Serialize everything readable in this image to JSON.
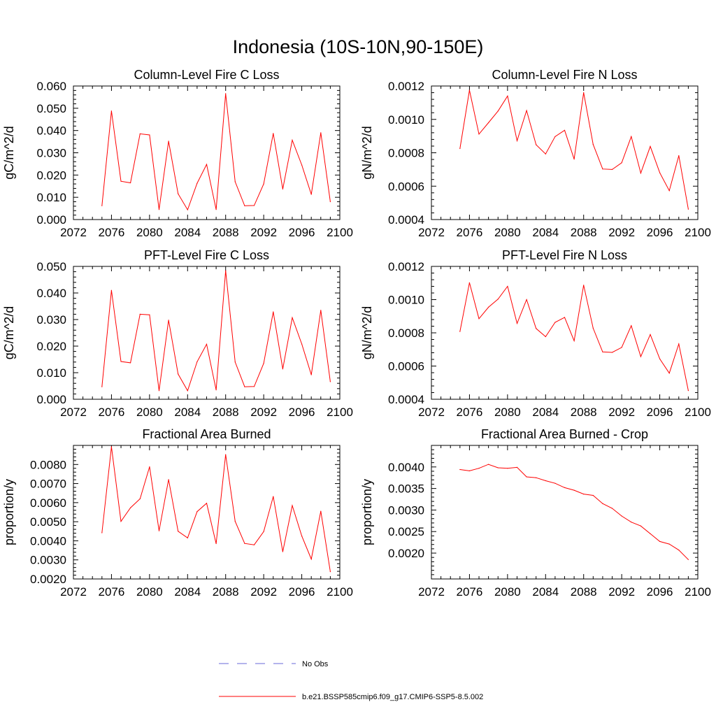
{
  "figure_title": "Indonesia (10S-10N,90-150E)",
  "legend": {
    "entries": [
      {
        "label": "No Obs",
        "color": "#6a6ad8",
        "style": "dashed"
      },
      {
        "label": "b.e21.BSSP585cmip6.f09_g17.CMIP6-SSP5-8.5.002",
        "color": "#ff0000",
        "style": "solid"
      }
    ]
  },
  "colors": {
    "series": "#ff0000",
    "axis": "#000000"
  },
  "chart_data": [
    {
      "type": "line",
      "title": "Column-Level Fire C Loss",
      "xlabel": "",
      "ylabel": "gC/m^2/d",
      "xlim": [
        2072,
        2100
      ],
      "ylim": [
        0.0,
        0.06
      ],
      "xticks": [
        2072,
        2076,
        2080,
        2084,
        2088,
        2092,
        2096,
        2100
      ],
      "yticks": [
        0.0,
        0.01,
        0.02,
        0.03,
        0.04,
        0.05,
        0.06
      ],
      "ytick_labels": [
        "0.000",
        "0.010",
        "0.020",
        "0.030",
        "0.040",
        "0.050",
        "0.060"
      ],
      "x": [
        2075,
        2076,
        2077,
        2078,
        2079,
        2080,
        2081,
        2082,
        2083,
        2084,
        2085,
        2086,
        2087,
        2088,
        2089,
        2090,
        2091,
        2092,
        2093,
        2094,
        2095,
        2096,
        2097,
        2098,
        2099
      ],
      "series": [
        {
          "values": [
            0.0062,
            0.0488,
            0.0172,
            0.0165,
            0.0385,
            0.038,
            0.0045,
            0.0352,
            0.0116,
            0.0044,
            0.0163,
            0.0248,
            0.0045,
            0.0566,
            0.017,
            0.0062,
            0.0063,
            0.016,
            0.0387,
            0.0137,
            0.0357,
            0.0245,
            0.0113,
            0.039,
            0.008
          ]
        }
      ]
    },
    {
      "type": "line",
      "title": "Column-Level Fire N Loss",
      "xlabel": "",
      "ylabel": "gN/m^2/d",
      "xlim": [
        2072,
        2100
      ],
      "ylim": [
        0.0004,
        0.0012
      ],
      "xticks": [
        2072,
        2076,
        2080,
        2084,
        2088,
        2092,
        2096,
        2100
      ],
      "yticks": [
        0.0004,
        0.0006,
        0.0008,
        0.001,
        0.0012
      ],
      "ytick_labels": [
        "0.0004",
        "0.0006",
        "0.0008",
        "0.0010",
        "0.0012"
      ],
      "x": [
        2075,
        2076,
        2077,
        2078,
        2079,
        2080,
        2081,
        2082,
        2083,
        2084,
        2085,
        2086,
        2087,
        2088,
        2089,
        2090,
        2091,
        2092,
        2093,
        2094,
        2095,
        2096,
        2097,
        2098,
        2099
      ],
      "series": [
        {
          "values": [
            0.000825,
            0.001175,
            0.000912,
            0.00098,
            0.00105,
            0.00114,
            0.000872,
            0.001053,
            0.000848,
            0.000793,
            0.000897,
            0.000935,
            0.000762,
            0.00116,
            0.00085,
            0.000703,
            0.0007,
            0.00074,
            0.000897,
            0.000678,
            0.000838,
            0.00068,
            0.000573,
            0.000783,
            0.000462
          ]
        }
      ]
    },
    {
      "type": "line",
      "title": "PFT-Level Fire C Loss",
      "xlabel": "",
      "ylabel": "gC/m^2/d",
      "xlim": [
        2072,
        2100
      ],
      "ylim": [
        0.0,
        0.05
      ],
      "xticks": [
        2072,
        2076,
        2080,
        2084,
        2088,
        2092,
        2096,
        2100
      ],
      "yticks": [
        0.0,
        0.01,
        0.02,
        0.03,
        0.04,
        0.05
      ],
      "ytick_labels": [
        "0.000",
        "0.010",
        "0.020",
        "0.030",
        "0.040",
        "0.050"
      ],
      "x": [
        2075,
        2076,
        2077,
        2078,
        2079,
        2080,
        2081,
        2082,
        2083,
        2084,
        2085,
        2086,
        2087,
        2088,
        2089,
        2090,
        2091,
        2092,
        2093,
        2094,
        2095,
        2096,
        2097,
        2098,
        2099
      ],
      "series": [
        {
          "values": [
            0.0047,
            0.041,
            0.0142,
            0.0137,
            0.032,
            0.0318,
            0.0032,
            0.0298,
            0.0095,
            0.0032,
            0.0141,
            0.0207,
            0.0035,
            0.0484,
            0.014,
            0.0047,
            0.0048,
            0.0135,
            0.0329,
            0.0114,
            0.0307,
            0.0208,
            0.0092,
            0.0335,
            0.0066
          ]
        }
      ]
    },
    {
      "type": "line",
      "title": "PFT-Level Fire N Loss",
      "xlabel": "",
      "ylabel": "gN/m^2/d",
      "xlim": [
        2072,
        2100
      ],
      "ylim": [
        0.0004,
        0.0012
      ],
      "xticks": [
        2072,
        2076,
        2080,
        2084,
        2088,
        2092,
        2096,
        2100
      ],
      "yticks": [
        0.0004,
        0.0006,
        0.0008,
        0.001,
        0.0012
      ],
      "ytick_labels": [
        "0.0004",
        "0.0006",
        "0.0008",
        "0.0010",
        "0.0012"
      ],
      "x": [
        2075,
        2076,
        2077,
        2078,
        2079,
        2080,
        2081,
        2082,
        2083,
        2084,
        2085,
        2086,
        2087,
        2088,
        2089,
        2090,
        2091,
        2092,
        2093,
        2094,
        2095,
        2096,
        2097,
        2098,
        2099
      ],
      "series": [
        {
          "values": [
            0.000808,
            0.001102,
            0.000885,
            0.000954,
            0.001003,
            0.00108,
            0.000857,
            0.001,
            0.000826,
            0.000777,
            0.000863,
            0.000893,
            0.000752,
            0.001087,
            0.000828,
            0.000685,
            0.000682,
            0.000712,
            0.000843,
            0.000657,
            0.00079,
            0.000643,
            0.000557,
            0.000733,
            0.000452
          ]
        }
      ]
    },
    {
      "type": "line",
      "title": "Fractional Area Burned",
      "xlabel": "",
      "ylabel": "proportion/y",
      "xlim": [
        2072,
        2100
      ],
      "ylim": [
        0.002,
        0.009
      ],
      "xticks": [
        2072,
        2076,
        2080,
        2084,
        2088,
        2092,
        2096,
        2100
      ],
      "yticks": [
        0.002,
        0.003,
        0.004,
        0.005,
        0.006,
        0.007,
        0.008
      ],
      "ytick_labels": [
        "0.0020",
        "0.0030",
        "0.0040",
        "0.0050",
        "0.0060",
        "0.0070",
        "0.0080"
      ],
      "x": [
        2075,
        2076,
        2077,
        2078,
        2079,
        2080,
        2081,
        2082,
        2083,
        2084,
        2085,
        2086,
        2087,
        2088,
        2089,
        2090,
        2091,
        2092,
        2093,
        2094,
        2095,
        2096,
        2097,
        2098,
        2099
      ],
      "series": [
        {
          "values": [
            0.00442,
            0.00893,
            0.00502,
            0.00573,
            0.0062,
            0.00788,
            0.00452,
            0.00721,
            0.0045,
            0.00415,
            0.00553,
            0.00597,
            0.00385,
            0.00852,
            0.00502,
            0.00386,
            0.00379,
            0.00448,
            0.00632,
            0.00343,
            0.00585,
            0.00425,
            0.00304,
            0.00555,
            0.00238
          ]
        }
      ]
    },
    {
      "type": "line",
      "title": "Fractional Area Burned - Crop",
      "xlabel": "",
      "ylabel": "proportion/y",
      "xlim": [
        2072,
        2100
      ],
      "ylim": [
        0.0014,
        0.0045
      ],
      "xticks": [
        2072,
        2076,
        2080,
        2084,
        2088,
        2092,
        2096,
        2100
      ],
      "yticks": [
        0.002,
        0.0025,
        0.003,
        0.0035,
        0.004
      ],
      "ytick_labels": [
        "0.0020",
        "0.0025",
        "0.0030",
        "0.0035",
        "0.0040"
      ],
      "x": [
        2075,
        2076,
        2077,
        2078,
        2079,
        2080,
        2081,
        2082,
        2083,
        2084,
        2085,
        2086,
        2087,
        2088,
        2089,
        2090,
        2091,
        2092,
        2093,
        2094,
        2095,
        2096,
        2097,
        2098,
        2099
      ],
      "series": [
        {
          "values": [
            0.00394,
            0.00391,
            0.00397,
            0.00406,
            0.00398,
            0.00397,
            0.00399,
            0.00377,
            0.00375,
            0.00368,
            0.00362,
            0.00352,
            0.00346,
            0.00337,
            0.00334,
            0.00315,
            0.00304,
            0.00286,
            0.00272,
            0.00263,
            0.00245,
            0.00227,
            0.00221,
            0.00207,
            0.00185
          ]
        }
      ]
    }
  ]
}
